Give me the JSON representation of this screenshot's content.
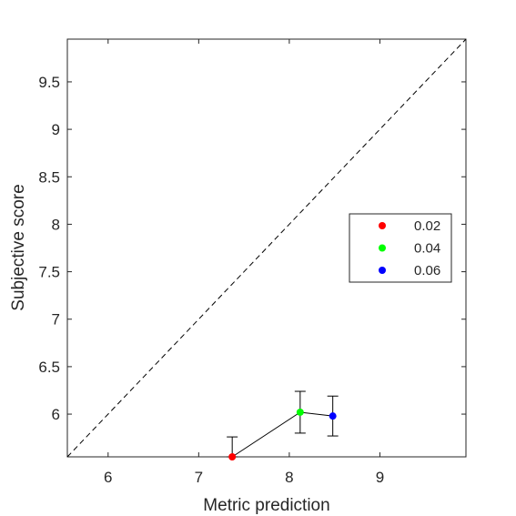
{
  "chart_data": {
    "type": "scatter",
    "title": "",
    "xlabel": "Metric prediction",
    "ylabel": "Subjective score",
    "xlim": [
      5.55,
      9.95
    ],
    "ylim": [
      5.55,
      9.95
    ],
    "xticks": [
      6,
      7,
      8,
      9
    ],
    "yticks": [
      6,
      6.5,
      7,
      7.5,
      8,
      8.5,
      9,
      9.5
    ],
    "xtick_labels": [
      "6",
      "7",
      "8",
      "9"
    ],
    "ytick_labels": [
      "6",
      "6.5",
      "7",
      "7.5",
      "8",
      "8.5",
      "9",
      "9.5"
    ],
    "grid": false,
    "legend_position": "right",
    "reference_line": {
      "style": "dashed",
      "from": [
        5.55,
        5.55
      ],
      "to": [
        9.95,
        9.95
      ]
    },
    "connected": true,
    "series": [
      {
        "name": "0.02",
        "color": "#ff0000",
        "x": 7.37,
        "y": 5.55,
        "err_low": 5.55,
        "err_high": 5.76
      },
      {
        "name": "0.04",
        "color": "#00ff00",
        "x": 8.12,
        "y": 6.02,
        "err_low": 5.8,
        "err_high": 6.24
      },
      {
        "name": "0.06",
        "color": "#0000ff",
        "x": 8.48,
        "y": 5.98,
        "err_low": 5.77,
        "err_high": 6.19
      }
    ]
  }
}
